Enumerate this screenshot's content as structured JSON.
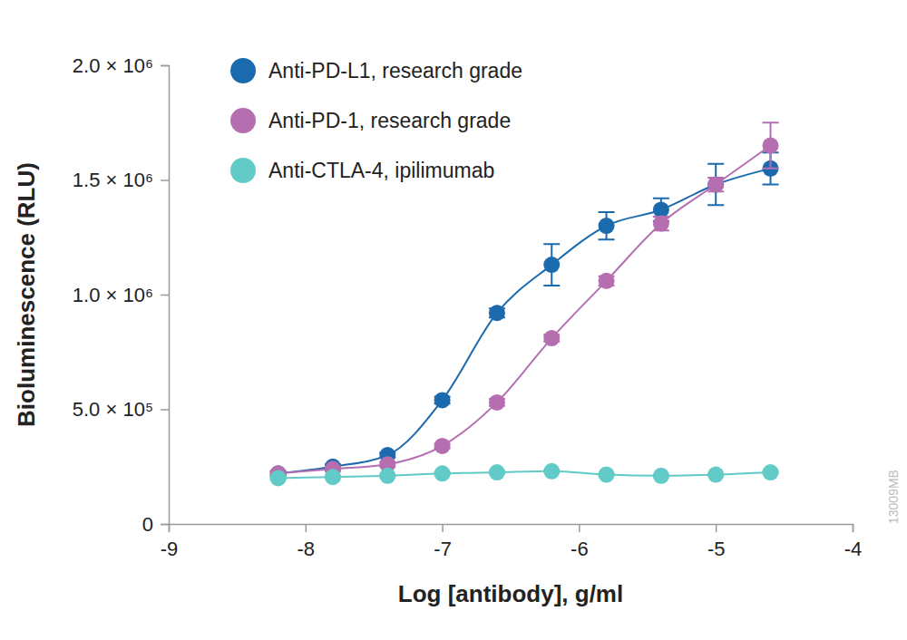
{
  "chart_data": {
    "type": "scatter",
    "x_label": "Log [antibody], g/ml",
    "y_label": "Bioluminescence (RLU)",
    "annotations": [
      "13009MB"
    ],
    "x": [
      -8.2,
      -7.8,
      -7.4,
      -7.0,
      -6.6,
      -6.2,
      -5.8,
      -5.4,
      -5.0,
      -4.6
    ],
    "series": [
      {
        "name": "Anti-PD-L1, research grade",
        "color": "#1b6aad",
        "marker": "circle",
        "line_style": "solid",
        "values": [
          220000,
          250000,
          300000,
          540000,
          920000,
          1130000,
          1300000,
          1370000,
          1480000,
          1550000
        ],
        "errors": [
          10000,
          10000,
          10000,
          15000,
          20000,
          90000,
          60000,
          50000,
          90000,
          70000
        ]
      },
      {
        "name": "Anti-PD-1, research grade",
        "color": "#b56fb1",
        "marker": "circle",
        "line_style": "solid",
        "values": [
          220000,
          240000,
          260000,
          340000,
          530000,
          810000,
          1060000,
          1310000,
          1480000,
          1650000
        ],
        "errors": [
          10000,
          10000,
          10000,
          10000,
          15000,
          15000,
          20000,
          30000,
          30000,
          100000
        ]
      },
      {
        "name": "Anti-CTLA-4, ipilimumab",
        "color": "#62cbc8",
        "marker": "circle",
        "line_style": "solid",
        "values": [
          200000,
          205000,
          210000,
          220000,
          225000,
          230000,
          215000,
          210000,
          215000,
          225000
        ],
        "errors": [
          5000,
          5000,
          5000,
          5000,
          5000,
          5000,
          5000,
          5000,
          5000,
          5000
        ]
      }
    ],
    "xlim": [
      -9,
      -4
    ],
    "xticks": [
      -9,
      -8,
      -7,
      -6,
      -5,
      -4
    ],
    "ylim": [
      0,
      2000000
    ],
    "yticks": [
      0,
      {
        "value": 500000,
        "label": "5.0 × 10⁵"
      },
      {
        "value": 1000000,
        "label": "1.0 × 10⁶"
      },
      {
        "value": 1500000,
        "label": "1.5 × 10⁶"
      },
      {
        "value": 2000000,
        "label": "2.0 × 10⁶"
      }
    ],
    "grid": false,
    "legend": "upper left"
  }
}
